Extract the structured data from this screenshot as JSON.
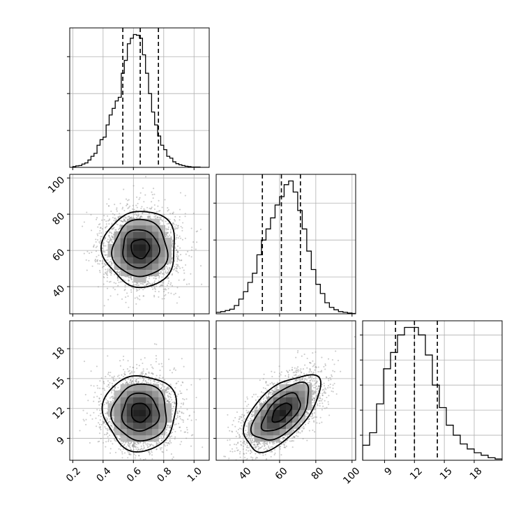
{
  "colors": {
    "axes": "#000000",
    "grid": "#b0b0b0",
    "scatter": "#8c8c8c",
    "density_dark": "#000000"
  },
  "chart_data": {
    "type": "corner",
    "grid": true,
    "parameters": [
      {
        "ticks": [
          0.2,
          0.4,
          0.6,
          0.8,
          1.0
        ],
        "tick_labels": [
          "0.2",
          "0.4",
          "0.6",
          "0.8",
          "1.0"
        ],
        "range": [
          0.18,
          1.1
        ],
        "quantiles": [
          0.53,
          0.645,
          0.765
        ]
      },
      {
        "ticks": [
          40,
          60,
          80,
          100
        ],
        "tick_labels": [
          "40",
          "60",
          "80",
          "100"
        ],
        "range": [
          25,
          102
        ],
        "quantiles": [
          50.5,
          61.0,
          71.5
        ]
      },
      {
        "ticks": [
          9,
          12,
          15,
          18
        ],
        "tick_labels": [
          "9",
          "12",
          "15",
          "18"
        ],
        "range": [
          6.8,
          20.8
        ],
        "quantiles": [
          10.1,
          12.0,
          14.3
        ]
      }
    ],
    "hist_bin_edges": [
      [
        0.18,
        0.2,
        0.22,
        0.24,
        0.26,
        0.28,
        0.3,
        0.32,
        0.34,
        0.36,
        0.38,
        0.4,
        0.42,
        0.44,
        0.46,
        0.48,
        0.5,
        0.52,
        0.54,
        0.56,
        0.58,
        0.6,
        0.62,
        0.64,
        0.66,
        0.68,
        0.7,
        0.72,
        0.74,
        0.76,
        0.78,
        0.8,
        0.82,
        0.84,
        0.86,
        0.88,
        0.9,
        0.92,
        0.94,
        0.96,
        0.98,
        1.0,
        1.02,
        1.04,
        1.06,
        1.08,
        1.1
      ],
      [
        25,
        27.5,
        30,
        32.5,
        35,
        37.5,
        40,
        42.5,
        45,
        47.5,
        50,
        52.5,
        55,
        57.5,
        60,
        62.5,
        65,
        67.5,
        70,
        72.5,
        75,
        77.5,
        80,
        82.5,
        85,
        87.5,
        90,
        92.5,
        95,
        97.5,
        100,
        102
      ],
      [
        6.8,
        7.5,
        8.2,
        8.9,
        9.6,
        10.3,
        11.0,
        11.7,
        12.4,
        13.1,
        13.8,
        14.5,
        15.2,
        15.9,
        16.6,
        17.3,
        18.0,
        18.7,
        19.4,
        20.1,
        20.8
      ]
    ],
    "hist_counts": [
      [
        0,
        2,
        4,
        5,
        9,
        12,
        20,
        30,
        38,
        60,
        75,
        82,
        115,
        142,
        160,
        180,
        190,
        255,
        290,
        335,
        350,
        360,
        358,
        350,
        305,
        255,
        200,
        150,
        115,
        85,
        60,
        48,
        30,
        25,
        15,
        10,
        7,
        5,
        3,
        2,
        1,
        1,
        1,
        0,
        0,
        0
      ],
      [
        8,
        12,
        18,
        25,
        45,
        80,
        120,
        170,
        220,
        320,
        400,
        460,
        520,
        590,
        635,
        700,
        720,
        660,
        560,
        460,
        340,
        240,
        160,
        110,
        60,
        35,
        22,
        12,
        8,
        4,
        2
      ],
      [
        60,
        110,
        225,
        365,
        430,
        500,
        530,
        530,
        500,
        420,
        300,
        210,
        140,
        100,
        65,
        45,
        30,
        20,
        10,
        5
      ]
    ],
    "contour_levels_sigma": [
      0.5,
      1.0,
      1.5,
      2.0
    ],
    "pairs": [
      {
        "x": 0,
        "y": 1,
        "mean": [
          0.645,
          61.0
        ],
        "sd": [
          0.12,
          10.5
        ],
        "corr": 0.0,
        "n_points": 3000
      },
      {
        "x": 0,
        "y": 2,
        "mean": [
          0.645,
          11.6
        ],
        "sd": [
          0.12,
          1.9
        ],
        "corr": 0.0,
        "n_points": 3000
      },
      {
        "x": 1,
        "y": 2,
        "mean": [
          61.0,
          11.6
        ],
        "sd": [
          10.5,
          1.9
        ],
        "corr": 0.6,
        "n_points": 3000
      }
    ]
  }
}
